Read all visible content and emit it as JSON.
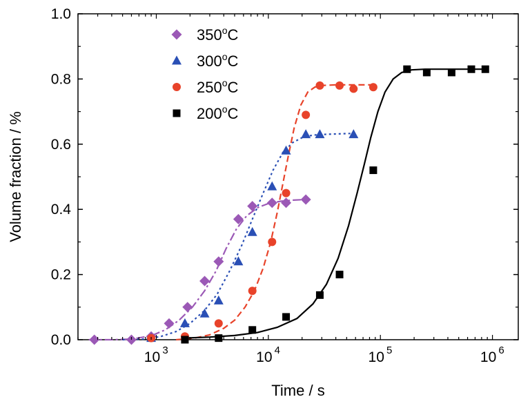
{
  "chart_data": {
    "type": "scatter",
    "title": "",
    "xlabel": "Time / s",
    "ylabel": "Volume fraction / %",
    "xscale": "log",
    "xlim": [
      200,
      1700000
    ],
    "ylim": [
      0,
      1.0
    ],
    "yticks": [
      "0.0",
      "0.2",
      "0.4",
      "0.6",
      "0.8",
      "1.0"
    ],
    "xticks": [
      {
        "base": "10",
        "exp": "3",
        "value": 1000
      },
      {
        "base": "10",
        "exp": "4",
        "value": 10000
      },
      {
        "base": "10",
        "exp": "5",
        "value": 100000
      },
      {
        "base": "10",
        "exp": "6",
        "value": 1000000
      }
    ],
    "grid": false,
    "legend_position": "top-left",
    "series": [
      {
        "name": "350",
        "unit": "C",
        "color": "#9b59b6",
        "marker": "diamond",
        "line": "dashdot",
        "x": [
          280,
          600,
          900,
          1300,
          1900,
          2700,
          3600,
          5400,
          7200,
          10800,
          14400,
          21600
        ],
        "y": [
          0.0,
          0.0,
          0.01,
          0.05,
          0.1,
          0.18,
          0.24,
          0.37,
          0.41,
          0.42,
          0.42,
          0.43
        ],
        "fit_x": [
          250,
          400,
          600,
          900,
          1200,
          1600,
          2100,
          2700,
          3400,
          4200,
          5200,
          6400,
          8000,
          10000,
          13000,
          16000,
          21600
        ],
        "fit_y": [
          0.0,
          0.0,
          0.002,
          0.012,
          0.03,
          0.06,
          0.1,
          0.15,
          0.21,
          0.28,
          0.34,
          0.38,
          0.405,
          0.418,
          0.425,
          0.428,
          0.43
        ]
      },
      {
        "name": "300",
        "unit": "C",
        "color": "#2a4fb5",
        "marker": "triangle",
        "line": "dotted",
        "x": [
          900,
          1800,
          2700,
          3600,
          5400,
          7200,
          10800,
          14400,
          21600,
          28800,
          57600
        ],
        "y": [
          0.005,
          0.05,
          0.08,
          0.12,
          0.24,
          0.33,
          0.47,
          0.58,
          0.63,
          0.63,
          0.63
        ],
        "fit_x": [
          500,
          800,
          1100,
          1500,
          2000,
          2700,
          3500,
          4500,
          5800,
          7200,
          9000,
          11000,
          13500,
          16500,
          20000,
          25000,
          32000,
          45000,
          57600
        ],
        "fit_y": [
          0.0,
          0.002,
          0.01,
          0.025,
          0.05,
          0.09,
          0.14,
          0.21,
          0.29,
          0.37,
          0.45,
          0.52,
          0.575,
          0.605,
          0.62,
          0.628,
          0.63,
          0.632,
          0.633
        ]
      },
      {
        "name": "250",
        "unit": "C",
        "color": "#e8432a",
        "marker": "circle",
        "line": "dashed",
        "x": [
          900,
          1800,
          3600,
          7200,
          10800,
          14400,
          21600,
          28800,
          43200,
          57600,
          86400
        ],
        "y": [
          0.005,
          0.01,
          0.05,
          0.15,
          0.3,
          0.45,
          0.69,
          0.78,
          0.78,
          0.77,
          0.775
        ],
        "fit_x": [
          1500,
          2200,
          3000,
          4000,
          5000,
          6200,
          7500,
          9000,
          10500,
          12000,
          13500,
          15000,
          17000,
          19500,
          22500,
          26000,
          30000,
          40000,
          60000,
          86400
        ],
        "fit_y": [
          0.0,
          0.005,
          0.015,
          0.035,
          0.06,
          0.1,
          0.15,
          0.22,
          0.3,
          0.39,
          0.48,
          0.56,
          0.65,
          0.72,
          0.76,
          0.775,
          0.78,
          0.782,
          0.782,
          0.782
        ]
      },
      {
        "name": "200",
        "unit": "C",
        "color": "#000000",
        "marker": "square",
        "line": "solid",
        "x": [
          1800,
          3600,
          7200,
          14400,
          28800,
          43200,
          86400,
          172800,
          259200,
          432000,
          648000,
          864000
        ],
        "y": [
          0.0,
          0.005,
          0.03,
          0.07,
          0.137,
          0.2,
          0.52,
          0.83,
          0.82,
          0.82,
          0.83,
          0.83
        ],
        "fit_x": [
          1800,
          3000,
          5000,
          8000,
          12000,
          18000,
          25000,
          33000,
          42000,
          52000,
          62000,
          72000,
          82000,
          95000,
          110000,
          130000,
          155000,
          190000,
          250000,
          400000,
          864000
        ],
        "fit_y": [
          0.005,
          0.008,
          0.013,
          0.022,
          0.038,
          0.065,
          0.11,
          0.17,
          0.25,
          0.35,
          0.45,
          0.54,
          0.62,
          0.7,
          0.76,
          0.8,
          0.82,
          0.828,
          0.83,
          0.83,
          0.83
        ]
      }
    ]
  }
}
